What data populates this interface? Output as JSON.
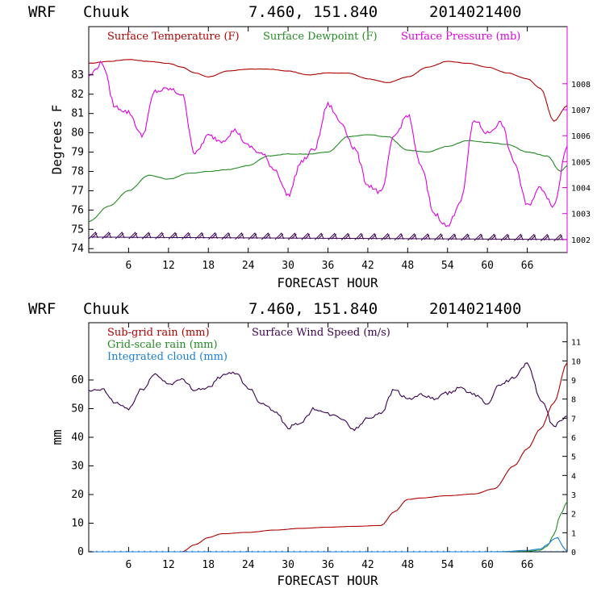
{
  "colors": {
    "temperature": "#b00000",
    "dewpoint": "#228b22",
    "pressure": "#e000e0",
    "subgrid": "#b00000",
    "gridscale": "#228b22",
    "cloud": "#1a7fd4",
    "wind": "#3a0050",
    "barb": "#3a0050"
  },
  "chart_data": [
    {
      "type": "line",
      "header": {
        "model": "WRF",
        "station": "Chuuk",
        "coords": "7.460, 151.840",
        "run": "2014021400"
      },
      "xlabel": "FORECAST HOUR",
      "ylabel": "Degrees F",
      "y2label": "",
      "xlim": [
        0,
        72
      ],
      "ylim": [
        73.8,
        85.5
      ],
      "y2lim": [
        1001.5,
        1010.2
      ],
      "xticks": [
        6,
        12,
        18,
        24,
        30,
        36,
        42,
        48,
        54,
        60,
        66
      ],
      "xtick_labels": [
        "6",
        "12",
        "18",
        "24",
        "30",
        "36",
        "42",
        "48",
        "54",
        "60",
        "66"
      ],
      "yticks": [
        74,
        75,
        76,
        77,
        78,
        79,
        80,
        81,
        82,
        83
      ],
      "ytick_labels": [
        "74",
        "75",
        "76",
        "77",
        "78",
        "79",
        "80",
        "81",
        "82",
        "83"
      ],
      "y2ticks": [
        1002,
        1003,
        1004,
        1005,
        1006,
        1007,
        1008
      ],
      "y2tick_labels": [
        "1002",
        "1003",
        "1004",
        "1005",
        "1006",
        "1007",
        "1008"
      ],
      "legend": [
        "Surface Temperature (F)",
        "Surface Dewpoint (F)",
        "Surface Pressure (mb)"
      ],
      "series": [
        {
          "name": "Surface Temperature (F)",
          "axis": "left",
          "color_key": "temperature",
          "x": [
            0,
            3,
            6,
            9,
            12,
            14,
            16,
            18,
            21,
            24,
            27,
            30,
            33,
            36,
            39,
            42,
            45,
            48,
            51,
            54,
            57,
            60,
            63,
            66,
            68,
            70,
            72
          ],
          "y": [
            83.6,
            83.7,
            83.8,
            83.7,
            83.6,
            83.4,
            83.1,
            82.9,
            83.2,
            83.3,
            83.3,
            83.2,
            83.0,
            83.1,
            83.1,
            82.8,
            82.6,
            82.9,
            83.4,
            83.7,
            83.6,
            83.4,
            83.1,
            82.8,
            82.3,
            80.6,
            81.4
          ]
        },
        {
          "name": "Surface Dewpoint (F)",
          "axis": "left",
          "color_key": "dewpoint",
          "x": [
            0,
            3,
            6,
            9,
            12,
            15,
            18,
            21,
            24,
            27,
            30,
            33,
            36,
            39,
            42,
            45,
            48,
            51,
            54,
            57,
            60,
            63,
            66,
            69,
            71,
            72
          ],
          "y": [
            75.4,
            76.2,
            77.0,
            77.8,
            77.6,
            77.9,
            78.0,
            78.1,
            78.3,
            78.8,
            78.9,
            78.9,
            79.0,
            79.8,
            79.9,
            79.8,
            79.1,
            79.0,
            79.3,
            79.6,
            79.5,
            79.4,
            79.0,
            78.8,
            78.0,
            78.3
          ]
        },
        {
          "name": "Surface Pressure (mb)",
          "axis": "right",
          "color_key": "pressure",
          "x": [
            0,
            2,
            4,
            6,
            8,
            10,
            12,
            14,
            16,
            18,
            20,
            22,
            24,
            26,
            28,
            30,
            32,
            34,
            36,
            38,
            40,
            42,
            44,
            46,
            48,
            50,
            52,
            54,
            56,
            58,
            60,
            62,
            64,
            66,
            68,
            70,
            72
          ],
          "y": [
            1008.3,
            1008.8,
            1007.1,
            1006.9,
            1006.0,
            1007.7,
            1007.8,
            1007.6,
            1005.3,
            1006.0,
            1005.8,
            1006.2,
            1005.6,
            1005.3,
            1004.7,
            1003.7,
            1005.0,
            1005.5,
            1007.2,
            1006.5,
            1005.5,
            1004.1,
            1003.8,
            1006.0,
            1006.8,
            1004.8,
            1003.0,
            1002.5,
            1003.5,
            1006.6,
            1006.1,
            1006.5,
            1005.0,
            1003.3,
            1004.0,
            1003.3,
            1005.6
          ]
        }
      ],
      "wind_barbs": {
        "x": [
          1,
          3,
          5,
          7,
          9,
          11,
          13,
          15,
          17,
          19,
          21,
          23,
          25,
          27,
          29,
          31,
          33,
          35,
          37,
          39,
          41,
          43,
          45,
          47,
          49,
          51,
          53,
          55,
          57,
          59,
          61,
          63,
          65,
          67,
          69,
          71
        ],
        "baseline": 74.6
      }
    },
    {
      "type": "line",
      "header": {
        "model": "WRF",
        "station": "Chuuk",
        "coords": "7.460, 151.840",
        "run": "2014021400"
      },
      "xlabel": "FORECAST HOUR",
      "ylabel": "mm",
      "xlim": [
        0,
        72
      ],
      "ylim": [
        0,
        80
      ],
      "y2lim": [
        0,
        12
      ],
      "xticks": [
        6,
        12,
        18,
        24,
        30,
        36,
        42,
        48,
        54,
        60,
        66
      ],
      "xtick_labels": [
        "6",
        "12",
        "18",
        "24",
        "30",
        "36",
        "42",
        "48",
        "54",
        "60",
        "66"
      ],
      "yticks": [
        0,
        10,
        20,
        30,
        40,
        50,
        60
      ],
      "ytick_labels": [
        "0",
        "10",
        "20",
        "30",
        "40",
        "50",
        "60"
      ],
      "y2ticks": [
        0,
        1,
        2,
        3,
        4,
        5,
        6,
        7,
        8,
        9,
        10,
        11
      ],
      "y2tick_labels": [
        "0",
        "1",
        "2",
        "3",
        "4",
        "5",
        "6",
        "7",
        "8",
        "9",
        "10",
        "11"
      ],
      "legend": [
        "Sub-grid rain (mm)",
        "Grid-scale rain (mm)",
        "Integrated cloud (mm)",
        "Surface Wind Speed (m/s)"
      ],
      "series": [
        {
          "name": "Sub-grid rain (mm)",
          "axis": "left",
          "color_key": "subgrid",
          "x": [
            0,
            14,
            16,
            18,
            20,
            24,
            28,
            32,
            36,
            40,
            44,
            46,
            48,
            50,
            54,
            58,
            61,
            64,
            66,
            68,
            70,
            72
          ],
          "y": [
            0,
            0,
            2.5,
            5.0,
            6.3,
            6.8,
            7.6,
            8.2,
            8.6,
            8.9,
            9.2,
            14.0,
            18.3,
            18.8,
            19.6,
            20.2,
            22.0,
            30.0,
            36.0,
            43.0,
            52.0,
            66.0
          ]
        },
        {
          "name": "Grid-scale rain (mm)",
          "axis": "left",
          "color_key": "gridscale",
          "x": [
            0,
            60,
            66,
            68,
            69,
            70,
            71,
            72
          ],
          "y": [
            0,
            0,
            0.2,
            0.6,
            2.0,
            6.0,
            13.0,
            17.5
          ]
        },
        {
          "name": "Integrated cloud (mm)",
          "axis": "left",
          "color_key": "cloud",
          "x": [
            0,
            62,
            66,
            68,
            69,
            70,
            70.6,
            71.3,
            72
          ],
          "y": [
            0,
            0,
            0.5,
            1.0,
            2.5,
            4.5,
            5.0,
            2.0,
            0
          ]
        },
        {
          "name": "Surface Wind Speed (m/s)",
          "axis": "right",
          "color_key": "wind",
          "x": [
            0,
            2,
            4,
            6,
            8,
            10,
            12,
            14,
            16,
            18,
            20,
            22,
            24,
            26,
            28,
            30,
            32,
            34,
            36,
            38,
            40,
            42,
            44,
            46,
            48,
            50,
            52,
            54,
            56,
            58,
            60,
            62,
            64,
            66,
            68,
            70,
            72
          ],
          "y": [
            8.4,
            8.5,
            7.8,
            7.5,
            8.5,
            9.3,
            8.8,
            9.0,
            8.5,
            8.6,
            9.2,
            9.4,
            8.6,
            7.8,
            7.4,
            6.5,
            6.8,
            7.5,
            7.2,
            7.0,
            6.4,
            7.0,
            7.3,
            8.5,
            8.0,
            8.2,
            8.0,
            8.3,
            8.6,
            8.2,
            7.8,
            8.8,
            9.1,
            9.9,
            8.0,
            6.6,
            7.1
          ]
        }
      ]
    }
  ]
}
